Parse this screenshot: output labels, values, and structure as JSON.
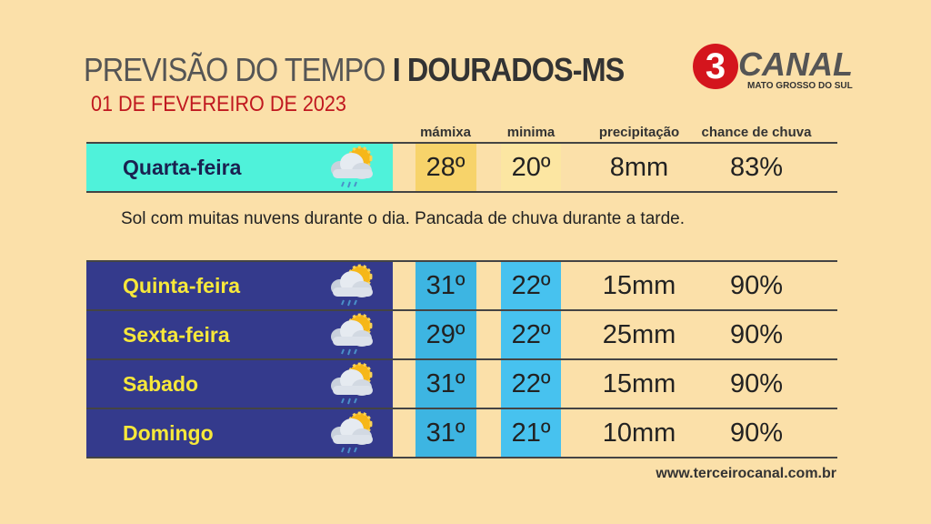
{
  "header": {
    "title": "PREVISÃO DO TEMPO",
    "location": "I DOURADOS-MS",
    "date": "01 DE FEVEREIRO DE 2023"
  },
  "logo": {
    "number": "3",
    "name": "CANAL",
    "region": "MATO GROSSO DO SUL"
  },
  "table": {
    "columns": [
      "mámixa",
      "minima",
      "precipitação",
      "chance de chuva"
    ],
    "rows": [
      [
        "Quarta-feira",
        "28º",
        "20º",
        "8mm",
        "83%"
      ],
      [
        "Quinta-feira",
        "31º",
        "22º",
        "15mm",
        "90%"
      ],
      [
        "Sexta-feira",
        "29º",
        "22º",
        "25mm",
        "90%"
      ],
      [
        "Sabado",
        "31º",
        "22º",
        "15mm",
        "90%"
      ],
      [
        "Domingo",
        "31º",
        "21º",
        "10mm",
        "90%"
      ]
    ]
  },
  "description": "Sol com muitas nuvens durante o dia. Pancada de chuva durante a tarde.",
  "footer": "www.terceirocanal.com.br"
}
